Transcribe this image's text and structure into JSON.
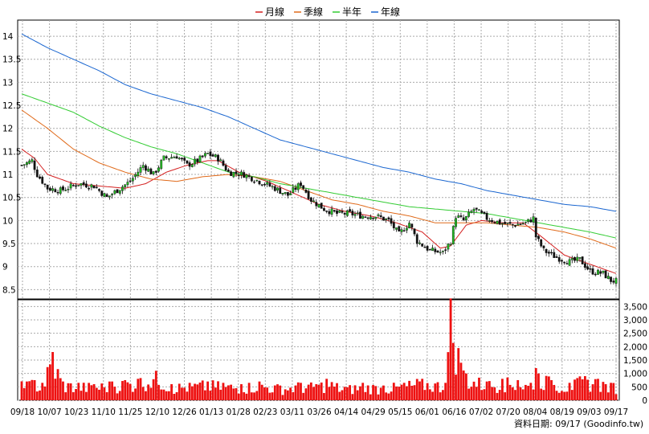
{
  "chart_data": {
    "type": "candlestick+volume",
    "legend": [
      {
        "name": "月線",
        "color": "#d42020"
      },
      {
        "name": "季線",
        "color": "#e06a1a"
      },
      {
        "name": "半年",
        "color": "#33cc33"
      },
      {
        "name": "年線",
        "color": "#1a66d0"
      }
    ],
    "price_axis": {
      "min": 8.5,
      "max": 14,
      "ticks": [
        "8.5",
        "9",
        "9.5",
        "10",
        "10.5",
        "11",
        "11.5",
        "12",
        "12.5",
        "13",
        "13.5",
        "14"
      ]
    },
    "volume_axis": {
      "min": 0,
      "max": 3500,
      "ticks": [
        "0",
        "500",
        "1,000",
        "1,500",
        "2,000",
        "2,500",
        "3,000",
        "3,500"
      ]
    },
    "x_ticks": [
      "09/18",
      "10/07",
      "10/23",
      "11/10",
      "11/25",
      "12/10",
      "12/26",
      "01/13",
      "01/28",
      "02/23",
      "03/11",
      "03/26",
      "04/14",
      "04/29",
      "05/15",
      "06/01",
      "06/16",
      "07/02",
      "07/20",
      "08/04",
      "08/19",
      "09/03",
      "09/17"
    ],
    "grid": true,
    "source_label": "資料日期: 09/17  (Goodinfo.tw)",
    "candle_colors": {
      "up": "#22bb22",
      "down": "#111111"
    },
    "volume_color": "#ee1111",
    "price_anchors": [
      [
        0,
        11.2
      ],
      [
        4,
        11.3
      ],
      [
        6,
        11.0
      ],
      [
        10,
        10.7
      ],
      [
        15,
        10.65
      ],
      [
        22,
        10.8
      ],
      [
        28,
        10.75
      ],
      [
        33,
        10.5
      ],
      [
        38,
        10.7
      ],
      [
        42,
        10.85
      ],
      [
        47,
        11.2
      ],
      [
        51,
        11.0
      ],
      [
        55,
        11.35
      ],
      [
        60,
        11.4
      ],
      [
        64,
        11.2
      ],
      [
        68,
        11.3
      ],
      [
        72,
        11.45
      ],
      [
        76,
        11.35
      ],
      [
        80,
        11.05
      ],
      [
        86,
        11.0
      ],
      [
        92,
        10.85
      ],
      [
        98,
        10.7
      ],
      [
        103,
        10.55
      ],
      [
        108,
        10.8
      ],
      [
        112,
        10.45
      ],
      [
        117,
        10.25
      ],
      [
        122,
        10.15
      ],
      [
        127,
        10.15
      ],
      [
        132,
        10.1
      ],
      [
        137,
        10.1
      ],
      [
        142,
        10.0
      ],
      [
        146,
        9.7
      ],
      [
        150,
        9.95
      ],
      [
        153,
        9.55
      ],
      [
        158,
        9.35
      ],
      [
        163,
        9.3
      ],
      [
        166,
        9.55
      ],
      [
        168,
        10.1
      ],
      [
        171,
        10.0
      ],
      [
        175,
        10.25
      ],
      [
        180,
        10.05
      ],
      [
        185,
        9.95
      ],
      [
        190,
        9.9
      ],
      [
        195,
        9.95
      ],
      [
        198,
        10.05
      ],
      [
        199,
        9.65
      ],
      [
        202,
        9.35
      ],
      [
        207,
        9.2
      ],
      [
        212,
        9.1
      ],
      [
        216,
        9.15
      ],
      [
        220,
        8.9
      ],
      [
        225,
        8.85
      ],
      [
        228,
        8.7
      ],
      [
        230,
        8.68
      ]
    ],
    "ma_month": [
      [
        0,
        11.55
      ],
      [
        5,
        11.35
      ],
      [
        10,
        11.0
      ],
      [
        20,
        10.8
      ],
      [
        30,
        10.75
      ],
      [
        40,
        10.7
      ],
      [
        48,
        10.8
      ],
      [
        56,
        11.05
      ],
      [
        64,
        11.2
      ],
      [
        72,
        11.3
      ],
      [
        76,
        11.3
      ],
      [
        84,
        11.05
      ],
      [
        95,
        10.85
      ],
      [
        105,
        10.6
      ],
      [
        115,
        10.35
      ],
      [
        125,
        10.2
      ],
      [
        135,
        10.1
      ],
      [
        145,
        9.95
      ],
      [
        155,
        9.75
      ],
      [
        162,
        9.4
      ],
      [
        166,
        9.45
      ],
      [
        172,
        9.9
      ],
      [
        178,
        10.0
      ],
      [
        186,
        9.95
      ],
      [
        194,
        9.95
      ],
      [
        200,
        9.7
      ],
      [
        210,
        9.25
      ],
      [
        220,
        9.05
      ],
      [
        230,
        8.85
      ]
    ],
    "ma_quarter": [
      [
        0,
        12.4
      ],
      [
        10,
        12.0
      ],
      [
        20,
        11.55
      ],
      [
        30,
        11.25
      ],
      [
        40,
        11.05
      ],
      [
        50,
        10.9
      ],
      [
        60,
        10.85
      ],
      [
        70,
        10.95
      ],
      [
        80,
        11.0
      ],
      [
        90,
        10.95
      ],
      [
        100,
        10.85
      ],
      [
        110,
        10.65
      ],
      [
        120,
        10.45
      ],
      [
        130,
        10.35
      ],
      [
        140,
        10.2
      ],
      [
        150,
        10.1
      ],
      [
        160,
        9.95
      ],
      [
        170,
        9.95
      ],
      [
        180,
        9.95
      ],
      [
        190,
        9.9
      ],
      [
        200,
        9.85
      ],
      [
        210,
        9.75
      ],
      [
        220,
        9.6
      ],
      [
        230,
        9.4
      ]
    ],
    "ma_halfyear": [
      [
        0,
        12.75
      ],
      [
        10,
        12.55
      ],
      [
        20,
        12.35
      ],
      [
        30,
        12.05
      ],
      [
        40,
        11.8
      ],
      [
        50,
        11.6
      ],
      [
        60,
        11.45
      ],
      [
        70,
        11.25
      ],
      [
        80,
        11.05
      ],
      [
        90,
        10.95
      ],
      [
        100,
        10.8
      ],
      [
        110,
        10.7
      ],
      [
        120,
        10.6
      ],
      [
        130,
        10.5
      ],
      [
        140,
        10.4
      ],
      [
        150,
        10.3
      ],
      [
        160,
        10.25
      ],
      [
        170,
        10.2
      ],
      [
        180,
        10.15
      ],
      [
        190,
        10.05
      ],
      [
        200,
        9.95
      ],
      [
        210,
        9.85
      ],
      [
        220,
        9.75
      ],
      [
        230,
        9.62
      ]
    ],
    "ma_year": [
      [
        0,
        14.05
      ],
      [
        10,
        13.75
      ],
      [
        20,
        13.5
      ],
      [
        30,
        13.25
      ],
      [
        40,
        12.95
      ],
      [
        50,
        12.75
      ],
      [
        60,
        12.6
      ],
      [
        70,
        12.45
      ],
      [
        80,
        12.25
      ],
      [
        90,
        12.0
      ],
      [
        100,
        11.75
      ],
      [
        110,
        11.6
      ],
      [
        120,
        11.45
      ],
      [
        130,
        11.3
      ],
      [
        140,
        11.15
      ],
      [
        150,
        11.05
      ],
      [
        160,
        10.9
      ],
      [
        170,
        10.8
      ],
      [
        180,
        10.65
      ],
      [
        190,
        10.55
      ],
      [
        200,
        10.45
      ],
      [
        210,
        10.35
      ],
      [
        220,
        10.3
      ],
      [
        230,
        10.2
      ]
    ],
    "volume_bars": [
      [
        2,
        700
      ],
      [
        5,
        750
      ],
      [
        8,
        650
      ],
      [
        12,
        1800
      ],
      [
        16,
        700
      ],
      [
        22,
        650
      ],
      [
        28,
        600
      ],
      [
        35,
        700
      ],
      [
        40,
        750
      ],
      [
        45,
        800
      ],
      [
        52,
        1100
      ],
      [
        58,
        600
      ],
      [
        65,
        650
      ],
      [
        72,
        700
      ],
      [
        78,
        650
      ],
      [
        85,
        600
      ],
      [
        92,
        700
      ],
      [
        100,
        550
      ],
      [
        108,
        650
      ],
      [
        114,
        600
      ],
      [
        118,
        800
      ],
      [
        125,
        500
      ],
      [
        132,
        650
      ],
      [
        140,
        550
      ],
      [
        148,
        650
      ],
      [
        155,
        800
      ],
      [
        164,
        650
      ],
      [
        166,
        3800
      ],
      [
        170,
        1400
      ],
      [
        172,
        1000
      ],
      [
        180,
        700
      ],
      [
        186,
        800
      ],
      [
        192,
        750
      ],
      [
        197,
        650
      ],
      [
        199,
        1200
      ],
      [
        205,
        750
      ],
      [
        212,
        650
      ],
      [
        218,
        900
      ],
      [
        223,
        800
      ],
      [
        228,
        650
      ]
    ]
  }
}
